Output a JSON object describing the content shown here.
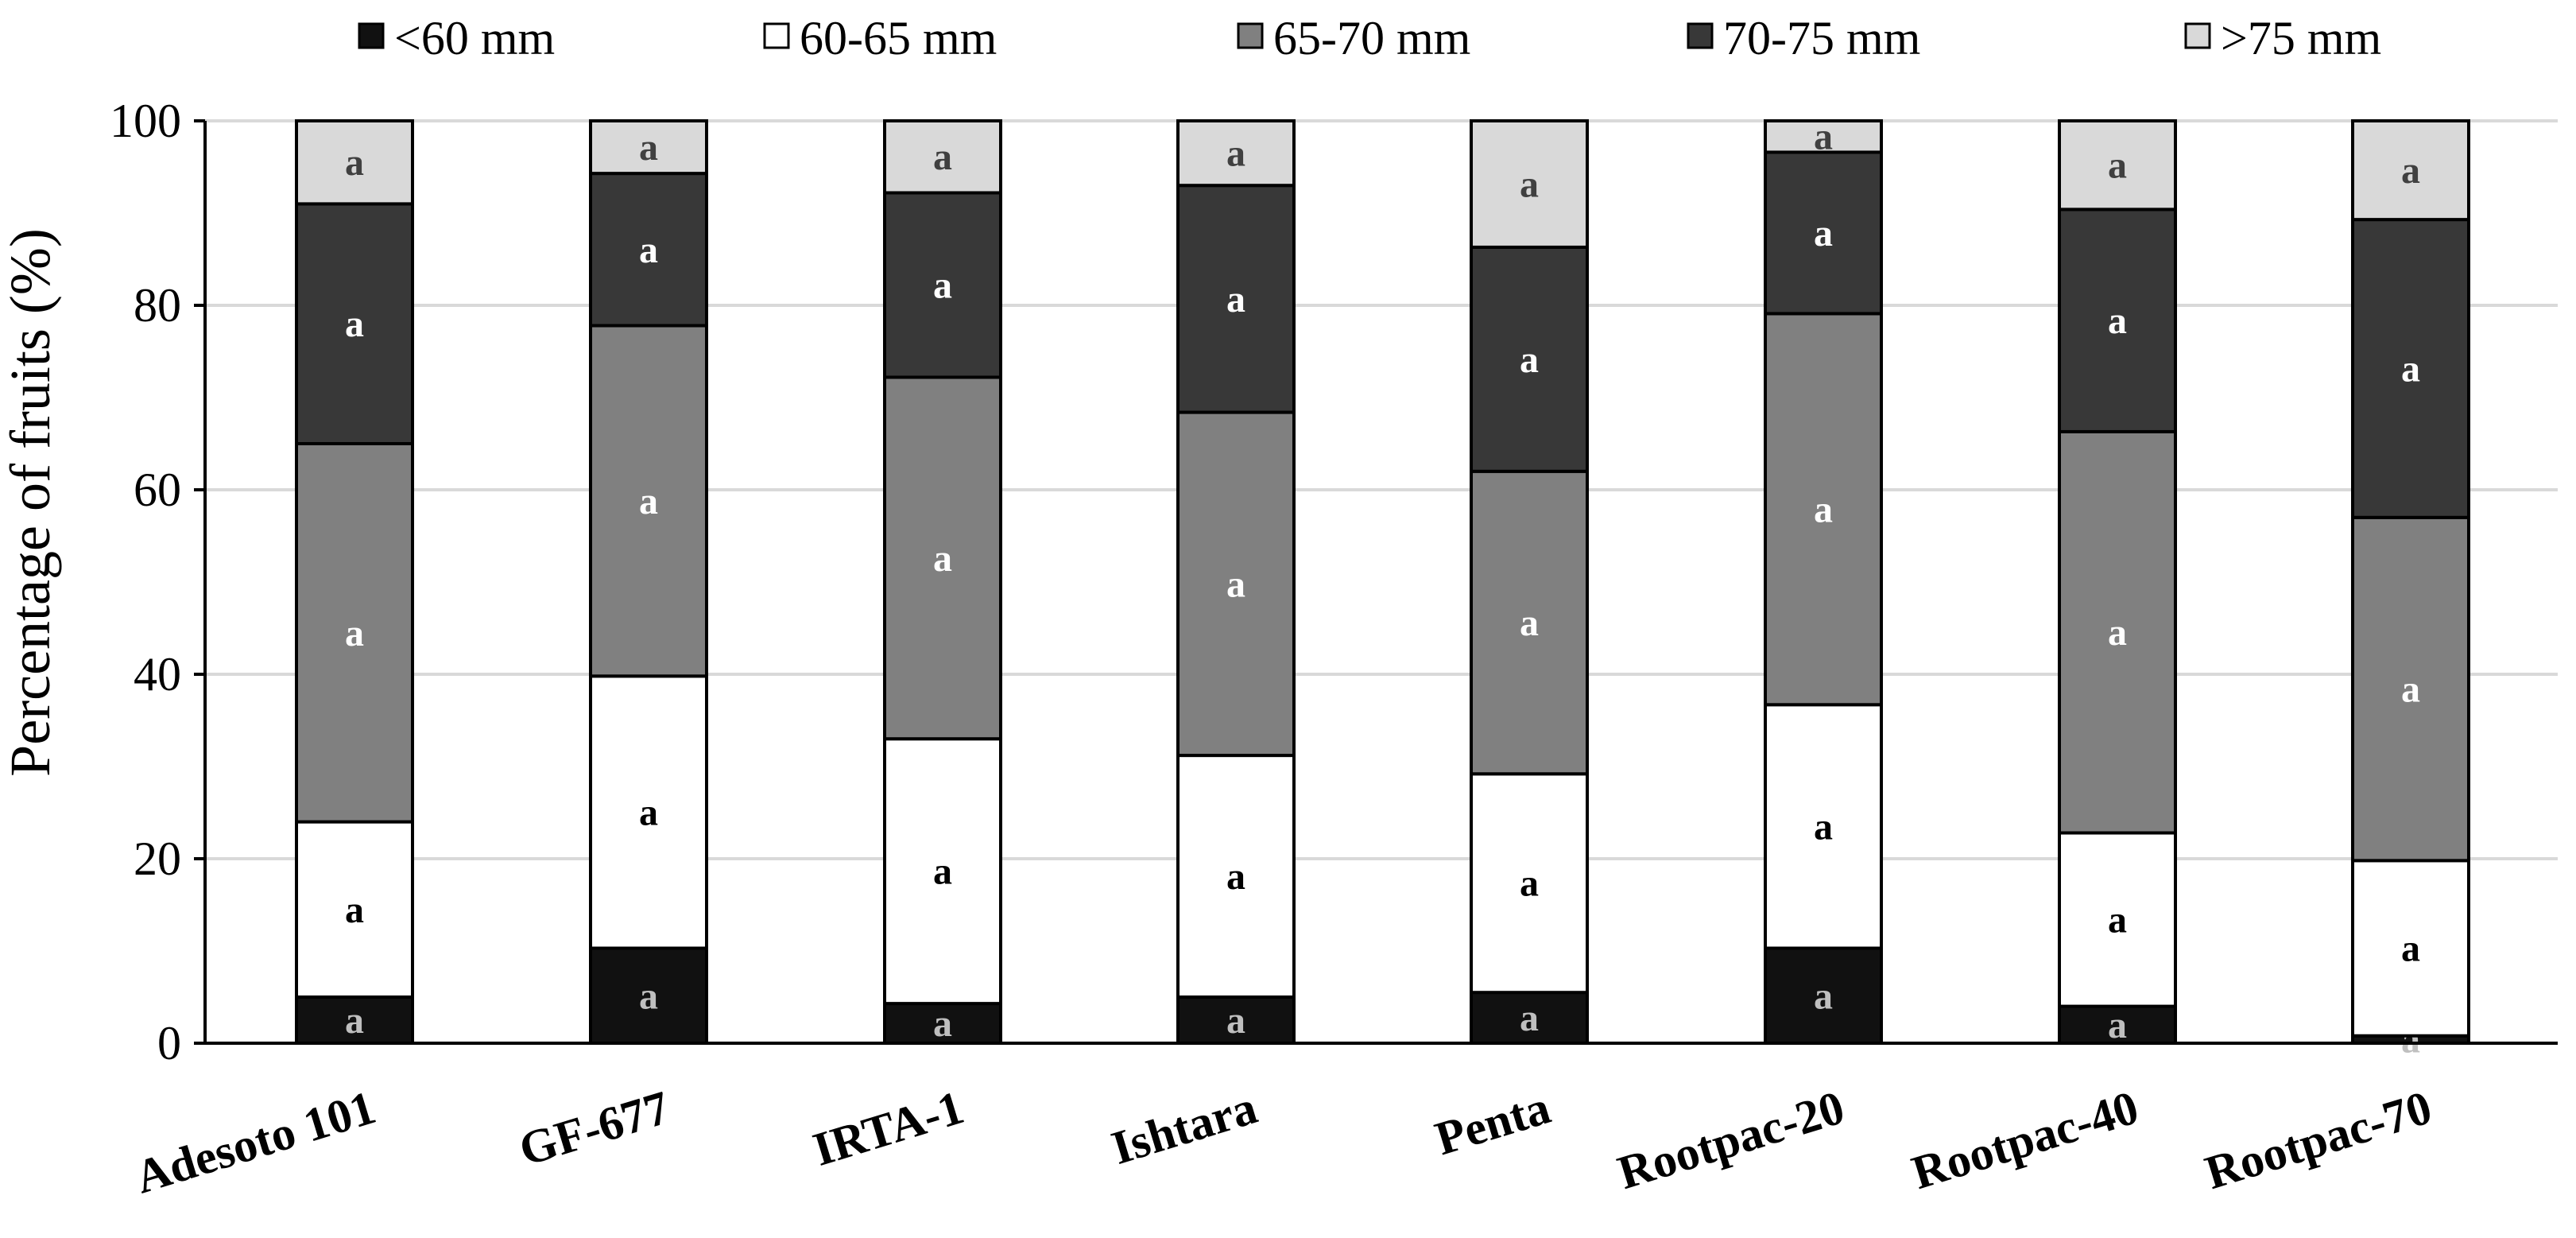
{
  "chart_data": {
    "type": "bar",
    "stacked": true,
    "ylabel": "Percentage of fruits (%)",
    "xlabel": "",
    "ylim": [
      0,
      100
    ],
    "yticks": [
      0,
      20,
      40,
      60,
      80,
      100
    ],
    "grid": true,
    "legend_position": "top",
    "categories": [
      "Adesoto 101",
      "GF-677",
      "IRTA-1",
      "Ishtara",
      "Penta",
      "Rootpac-20",
      "Rootpac-40",
      "Rootpac-70"
    ],
    "series": [
      {
        "name": "<60 mm",
        "color": "#111111",
        "label_color": "#bfbfbf",
        "values": [
          5,
          10.3,
          4.3,
          5,
          5.5,
          10.3,
          4,
          0.8
        ]
      },
      {
        "name": "60-65 mm",
        "color": "#ffffff",
        "label_color": "#000000",
        "values": [
          19,
          29.5,
          28.7,
          26.2,
          23.7,
          26.4,
          18.8,
          19
        ]
      },
      {
        "name": "65-70 mm",
        "color": "#808080",
        "label_color": "#ffffff",
        "values": [
          41,
          38,
          39.2,
          37.2,
          32.8,
          42.4,
          43.5,
          37.2
        ]
      },
      {
        "name": "70-75 mm",
        "color": "#383838",
        "label_color": "#ffffff",
        "values": [
          26,
          16.5,
          20,
          24.6,
          24.3,
          17.5,
          24.1,
          32.3
        ]
      },
      {
        "name": ">75 mm",
        "color": "#d9d9d9",
        "label_color": "#404040",
        "values": [
          9,
          5.7,
          7.8,
          7,
          13.7,
          3.4,
          9.6,
          10.7
        ]
      }
    ],
    "segment_labels": [
      [
        "a",
        "a",
        "a",
        "a",
        "a"
      ],
      [
        "a",
        "a",
        "a",
        "a",
        "a"
      ],
      [
        "a",
        "a",
        "a",
        "a",
        "a"
      ],
      [
        "a",
        "a",
        "a",
        "a",
        "a"
      ],
      [
        "a",
        "a",
        "a",
        "a",
        "a"
      ],
      [
        "a",
        "a",
        "a",
        "a",
        "a"
      ],
      [
        "a",
        "a",
        "a",
        "a",
        "a"
      ],
      [
        "a",
        "a",
        "a",
        "a",
        "a"
      ]
    ]
  }
}
